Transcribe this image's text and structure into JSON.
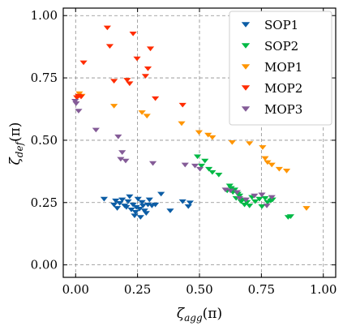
{
  "chart_data": {
    "type": "scatter",
    "xlabel": "ζagg(π)",
    "ylabel": "ζdef(π)",
    "xlabel_main": "ζ",
    "xlabel_sub": "agg",
    "xlabel_suffix": "(π)",
    "ylabel_main": "ζ",
    "ylabel_sub": "def",
    "ylabel_suffix": "(π)",
    "xlim": [
      -0.05,
      1.05
    ],
    "ylim": [
      -0.05,
      1.03
    ],
    "xticks": [
      "0.00",
      "0.25",
      "0.50",
      "0.75",
      "1.00"
    ],
    "yticks": [
      "0.00",
      "0.25",
      "0.50",
      "0.75",
      "1.00"
    ],
    "xtick_values": [
      0,
      0.25,
      0.5,
      0.75,
      1.0
    ],
    "ytick_values": [
      0,
      0.25,
      0.5,
      0.75,
      1.0
    ],
    "grid": true,
    "marker": "triangle-down",
    "legend_position": "top-right",
    "series": [
      {
        "name": "SOP1",
        "color": "#0c5da5",
        "points": [
          [
            0.115,
            0.265
          ],
          [
            0.155,
            0.242
          ],
          [
            0.162,
            0.258
          ],
          [
            0.168,
            0.228
          ],
          [
            0.178,
            0.248
          ],
          [
            0.188,
            0.262
          ],
          [
            0.198,
            0.238
          ],
          [
            0.205,
            0.232
          ],
          [
            0.212,
            0.255
          ],
          [
            0.218,
            0.275
          ],
          [
            0.225,
            0.222
          ],
          [
            0.232,
            0.242
          ],
          [
            0.238,
            0.198
          ],
          [
            0.242,
            0.212
          ],
          [
            0.245,
            0.232
          ],
          [
            0.252,
            0.265
          ],
          [
            0.258,
            0.225
          ],
          [
            0.262,
            0.192
          ],
          [
            0.268,
            0.252
          ],
          [
            0.272,
            0.238
          ],
          [
            0.278,
            0.218
          ],
          [
            0.285,
            0.208
          ],
          [
            0.292,
            0.242
          ],
          [
            0.298,
            0.262
          ],
          [
            0.308,
            0.238
          ],
          [
            0.322,
            0.242
          ],
          [
            0.345,
            0.285
          ],
          [
            0.382,
            0.218
          ],
          [
            0.432,
            0.255
          ],
          [
            0.455,
            0.235
          ],
          [
            0.462,
            0.25
          ]
        ]
      },
      {
        "name": "SOP2",
        "color": "#00b945",
        "points": [
          [
            0.492,
            0.435
          ],
          [
            0.508,
            0.398
          ],
          [
            0.522,
            0.418
          ],
          [
            0.538,
            0.385
          ],
          [
            0.552,
            0.372
          ],
          [
            0.578,
            0.362
          ],
          [
            0.612,
            0.298
          ],
          [
            0.622,
            0.318
          ],
          [
            0.628,
            0.308
          ],
          [
            0.635,
            0.292
          ],
          [
            0.642,
            0.302
          ],
          [
            0.648,
            0.268
          ],
          [
            0.655,
            0.285
          ],
          [
            0.662,
            0.278
          ],
          [
            0.668,
            0.255
          ],
          [
            0.675,
            0.262
          ],
          [
            0.682,
            0.242
          ],
          [
            0.692,
            0.252
          ],
          [
            0.702,
            0.238
          ],
          [
            0.712,
            0.272
          ],
          [
            0.725,
            0.255
          ],
          [
            0.742,
            0.265
          ],
          [
            0.752,
            0.235
          ],
          [
            0.765,
            0.268
          ],
          [
            0.775,
            0.252
          ],
          [
            0.788,
            0.258
          ],
          [
            0.795,
            0.262
          ],
          [
            0.858,
            0.192
          ],
          [
            0.868,
            0.195
          ]
        ]
      },
      {
        "name": "MOP1",
        "color": "#ff9500",
        "points": [
          [
            0.005,
            0.672
          ],
          [
            0.015,
            0.688
          ],
          [
            0.025,
            0.678
          ],
          [
            0.155,
            0.638
          ],
          [
            0.268,
            0.612
          ],
          [
            0.288,
            0.598
          ],
          [
            0.428,
            0.568
          ],
          [
            0.498,
            0.532
          ],
          [
            0.535,
            0.522
          ],
          [
            0.552,
            0.512
          ],
          [
            0.632,
            0.492
          ],
          [
            0.702,
            0.488
          ],
          [
            0.755,
            0.472
          ],
          [
            0.765,
            0.428
          ],
          [
            0.775,
            0.412
          ],
          [
            0.792,
            0.402
          ],
          [
            0.822,
            0.385
          ],
          [
            0.852,
            0.378
          ],
          [
            0.932,
            0.228
          ]
        ]
      },
      {
        "name": "MOP2",
        "color": "#ff2c00",
        "points": [
          [
            0.005,
            0.672
          ],
          [
            0.012,
            0.678
          ],
          [
            0.022,
            0.675
          ],
          [
            0.032,
            0.812
          ],
          [
            0.128,
            0.952
          ],
          [
            0.138,
            0.878
          ],
          [
            0.155,
            0.738
          ],
          [
            0.208,
            0.742
          ],
          [
            0.218,
            0.728
          ],
          [
            0.232,
            0.928
          ],
          [
            0.248,
            0.828
          ],
          [
            0.282,
            0.758
          ],
          [
            0.292,
            0.788
          ],
          [
            0.302,
            0.868
          ],
          [
            0.322,
            0.668
          ],
          [
            0.432,
            0.642
          ]
        ]
      },
      {
        "name": "MOP3",
        "color": "#845b97",
        "points": [
          [
            -0.002,
            0.658
          ],
          [
            0.002,
            0.648
          ],
          [
            0.012,
            0.618
          ],
          [
            0.082,
            0.542
          ],
          [
            0.172,
            0.515
          ],
          [
            0.182,
            0.425
          ],
          [
            0.188,
            0.452
          ],
          [
            0.202,
            0.418
          ],
          [
            0.312,
            0.408
          ],
          [
            0.442,
            0.402
          ],
          [
            0.482,
            0.398
          ],
          [
            0.502,
            0.385
          ],
          [
            0.605,
            0.302
          ],
          [
            0.625,
            0.298
          ],
          [
            0.652,
            0.292
          ],
          [
            0.662,
            0.268
          ],
          [
            0.688,
            0.262
          ],
          [
            0.722,
            0.278
          ],
          [
            0.752,
            0.282
          ],
          [
            0.772,
            0.238
          ],
          [
            0.792,
            0.272
          ]
        ]
      }
    ]
  }
}
